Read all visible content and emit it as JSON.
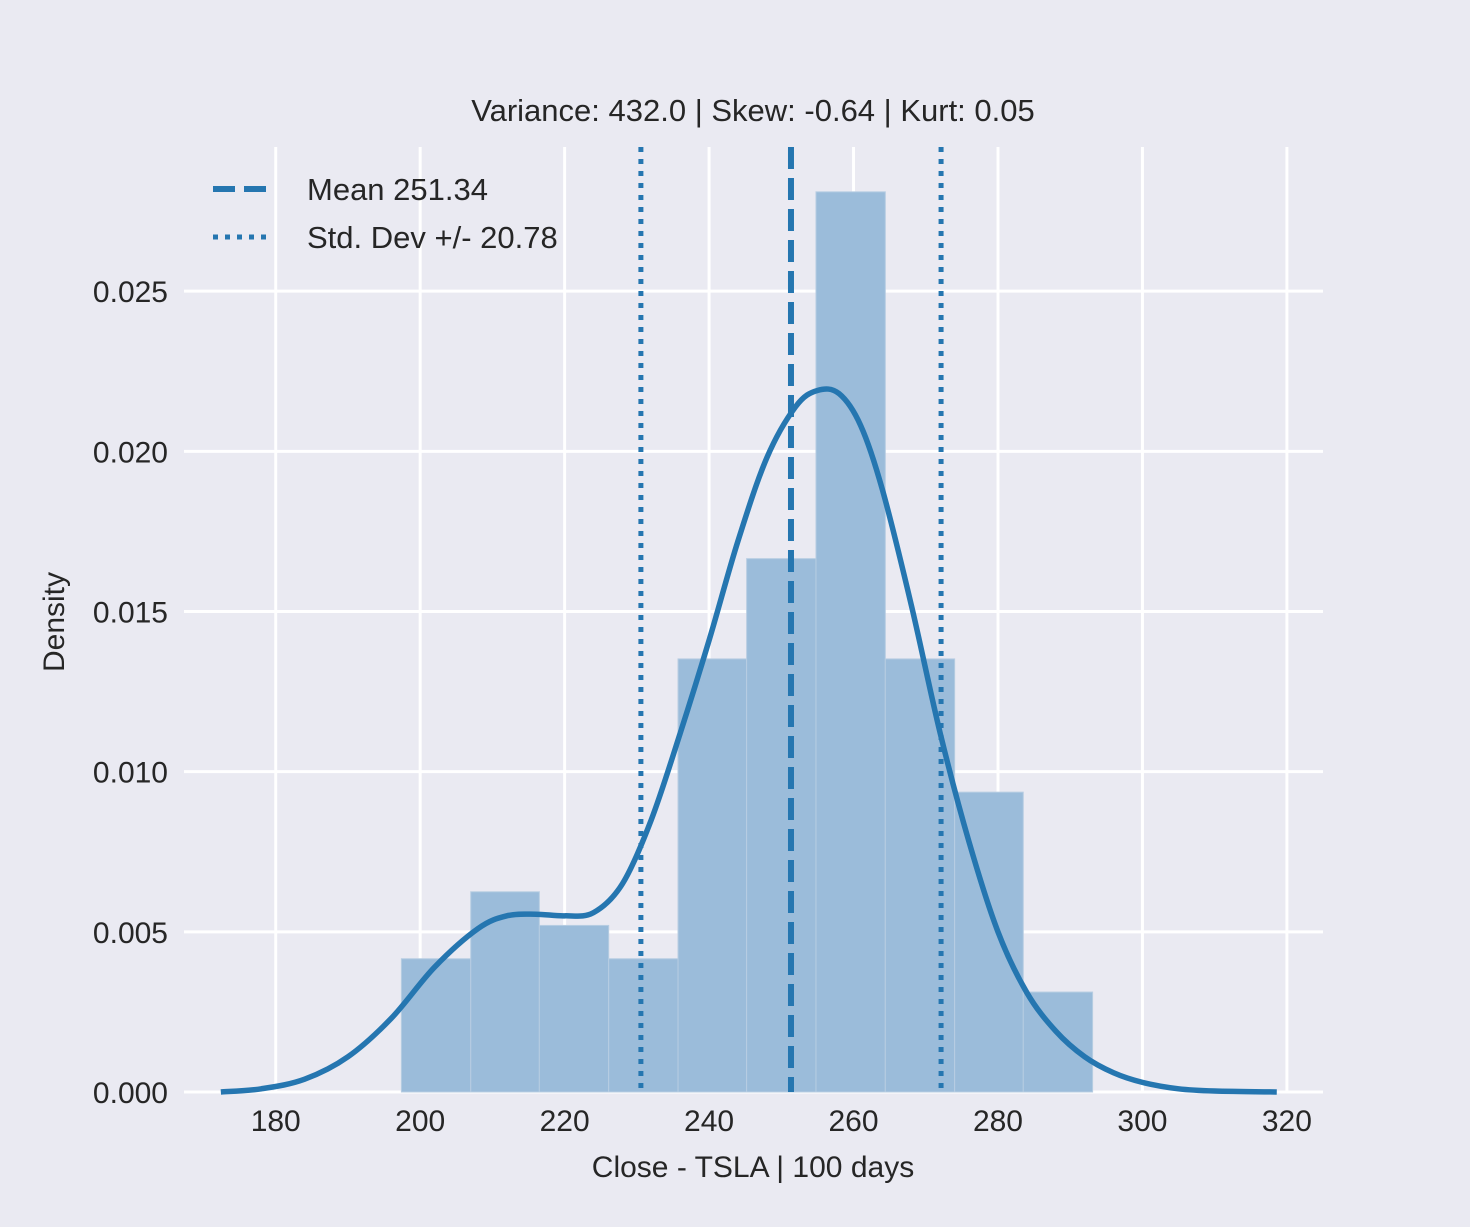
{
  "chart_data": {
    "type": "histogram",
    "title": "Variance: 432.0 | Skew: -0.64 | Kurt: 0.05",
    "xlabel": "Close - TSLA | 100 days",
    "ylabel": "Density",
    "xlim": [
      167.3,
      325.0
    ],
    "ylim": [
      0.0,
      0.0295
    ],
    "grid": true,
    "legend_position": "top-left",
    "xticks": [
      180,
      200,
      220,
      240,
      260,
      280,
      300,
      320
    ],
    "yticks": [
      0.0,
      0.005,
      0.01,
      0.015,
      0.02,
      0.025
    ],
    "xtick_labels": [
      "180",
      "200",
      "220",
      "240",
      "260",
      "280",
      "300",
      "320"
    ],
    "ytick_labels": [
      "0.000",
      "0.005",
      "0.010",
      "0.015",
      "0.020",
      "0.025"
    ],
    "bins": [
      {
        "x0": 197.4,
        "x1": 207.0,
        "density": 0.00416
      },
      {
        "x0": 207.0,
        "x1": 216.5,
        "density": 0.00625
      },
      {
        "x0": 216.5,
        "x1": 226.1,
        "density": 0.0052
      },
      {
        "x0": 226.1,
        "x1": 235.7,
        "density": 0.00416
      },
      {
        "x0": 235.7,
        "x1": 245.2,
        "density": 0.01352
      },
      {
        "x0": 245.2,
        "x1": 254.8,
        "density": 0.01665
      },
      {
        "x0": 254.8,
        "x1": 264.4,
        "density": 0.0281
      },
      {
        "x0": 264.4,
        "x1": 274.0,
        "density": 0.01352
      },
      {
        "x0": 274.0,
        "x1": 283.5,
        "density": 0.00936
      },
      {
        "x0": 283.5,
        "x1": 293.1,
        "density": 0.00312
      }
    ],
    "kde": {
      "x": [
        172.4,
        178.0,
        184.0,
        190.0,
        196.0,
        202.0,
        208.0,
        212.0,
        216.0,
        220.0,
        224.0,
        228.0,
        232.0,
        236.0,
        240.0,
        244.0,
        248.0,
        252.0,
        255.0,
        258.0,
        261.0,
        264.0,
        268.0,
        272.0,
        276.0,
        280.0,
        284.0,
        288.0,
        292.0,
        296.0,
        300.0,
        305.0,
        310.0,
        318.6
      ],
      "y": [
        0.0,
        0.0001,
        0.0004,
        0.0011,
        0.0023,
        0.0039,
        0.0051,
        0.0055,
        0.00555,
        0.0055,
        0.0056,
        0.0065,
        0.0085,
        0.0112,
        0.0141,
        0.0172,
        0.0198,
        0.0214,
        0.0219,
        0.0218,
        0.0208,
        0.0188,
        0.0152,
        0.0112,
        0.0078,
        0.005,
        0.0031,
        0.0019,
        0.0011,
        0.0006,
        0.0003,
        0.0001,
        3e-05,
        0.0
      ]
    },
    "mean": 251.34,
    "std": 20.78,
    "lines": [
      {
        "value": 251.34,
        "style": "dashed"
      },
      {
        "value": 230.56,
        "style": "dotted"
      },
      {
        "value": 272.12,
        "style": "dotted"
      }
    ],
    "legend": [
      {
        "label": "Mean 251.34",
        "style": "dashed"
      },
      {
        "label": "Std. Dev +/- 20.78",
        "style": "dotted"
      }
    ],
    "colors": {
      "background": "#eaeaf2",
      "grid": "#ffffff",
      "bar": "#9bbcda",
      "line": "#2576b0",
      "text": "#262626"
    }
  }
}
